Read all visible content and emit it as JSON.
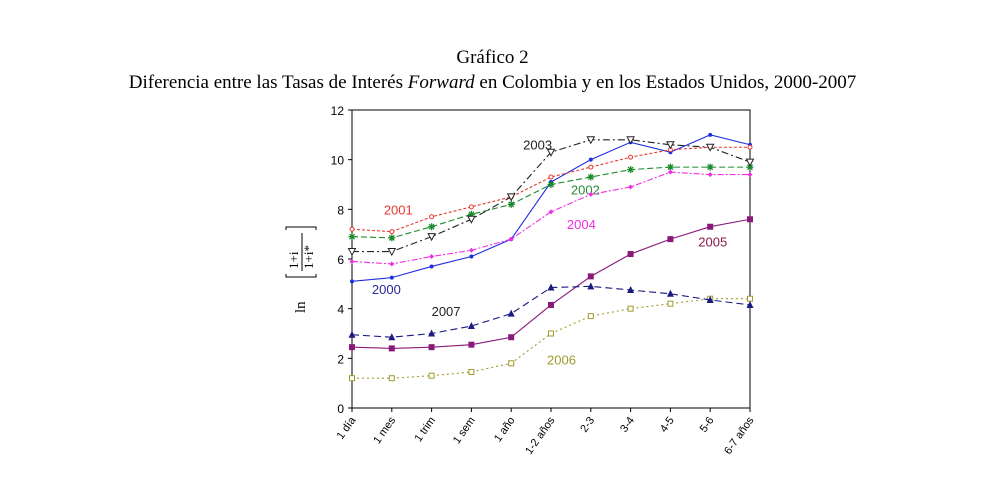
{
  "chart_data": {
    "type": "line",
    "title": "Gráfico 2",
    "subtitle_parts": [
      "Diferencia entre las Tasas de Interés ",
      "Forward",
      " en Colombia y en los Estados Unidos, 2000-2007"
    ],
    "ylabel": "ln [ (1+i) / (1+i*) ]",
    "ylabel_parts": {
      "fn": "ln",
      "num": "1+i",
      "den": "1+i*"
    },
    "xlabel": "",
    "ylim": [
      0,
      12
    ],
    "yticks": [
      0,
      2,
      4,
      6,
      8,
      10,
      12
    ],
    "categories": [
      "1 día",
      "1 mes",
      "1 trim",
      "1 sem",
      "1 año",
      "1-2 años",
      "2-3",
      "3-4",
      "4-5",
      "5-6",
      "6-7 años"
    ],
    "grid": false,
    "series": [
      {
        "name": "2000",
        "color": "#1f2ee0",
        "dash": "",
        "marker": "dot",
        "label_at": [
          0.5,
          4.6
        ],
        "label_color": "#2a2a9a",
        "values": [
          5.1,
          5.25,
          5.7,
          6.1,
          6.8,
          9.1,
          10.0,
          10.7,
          10.3,
          11.0,
          10.6
        ]
      },
      {
        "name": "2001",
        "color": "#e8392f",
        "dash": "3,2",
        "marker": "circle",
        "label_at": [
          0.8,
          7.8
        ],
        "label_color": "#e8392f",
        "values": [
          7.2,
          7.1,
          7.7,
          8.1,
          8.5,
          9.3,
          9.7,
          10.1,
          10.4,
          10.5,
          10.5
        ]
      },
      {
        "name": "2002",
        "color": "#1a8a2a",
        "dash": "6,3",
        "marker": "star",
        "label_at": [
          5.5,
          8.6
        ],
        "label_color": "#2a8a3a",
        "values": [
          6.9,
          6.85,
          7.3,
          7.8,
          8.2,
          9.0,
          9.3,
          9.6,
          9.7,
          9.7,
          9.7
        ]
      },
      {
        "name": "2003",
        "color": "#222222",
        "dash": "7,3,2,3",
        "marker": "tri-down",
        "label_at": [
          4.3,
          10.4
        ],
        "label_color": "#222222",
        "values": [
          6.3,
          6.3,
          6.9,
          7.6,
          8.5,
          10.3,
          10.8,
          10.8,
          10.6,
          10.5,
          9.9
        ]
      },
      {
        "name": "2004",
        "color": "#f030e0",
        "dash": "6,2,2,2",
        "marker": "diamond",
        "label_at": [
          5.4,
          7.2
        ],
        "label_color": "#f030e0",
        "values": [
          5.9,
          5.8,
          6.1,
          6.35,
          6.8,
          7.9,
          8.6,
          8.9,
          9.5,
          9.4,
          9.4
        ]
      },
      {
        "name": "2005",
        "color": "#8a1a7a",
        "dash": "",
        "marker": "square",
        "label_at": [
          8.7,
          6.5
        ],
        "label_color": "#8a1a4a",
        "values": [
          2.45,
          2.4,
          2.45,
          2.55,
          2.85,
          4.15,
          5.3,
          6.2,
          6.8,
          7.3,
          7.6
        ]
      },
      {
        "name": "2006",
        "color": "#a09a30",
        "dash": "2,3",
        "marker": "open-square",
        "label_at": [
          4.9,
          1.75
        ],
        "label_color": "#a09a30",
        "values": [
          1.2,
          1.2,
          1.3,
          1.45,
          1.8,
          3.0,
          3.7,
          4.0,
          4.2,
          4.4,
          4.4
        ]
      },
      {
        "name": "2007",
        "color": "#1a1a80",
        "dash": "7,4",
        "marker": "triangle",
        "label_at": [
          2.0,
          3.7
        ],
        "label_color": "#222222",
        "values": [
          2.95,
          2.85,
          3.0,
          3.3,
          3.8,
          4.85,
          4.9,
          4.75,
          4.6,
          4.35,
          4.15
        ]
      }
    ]
  }
}
